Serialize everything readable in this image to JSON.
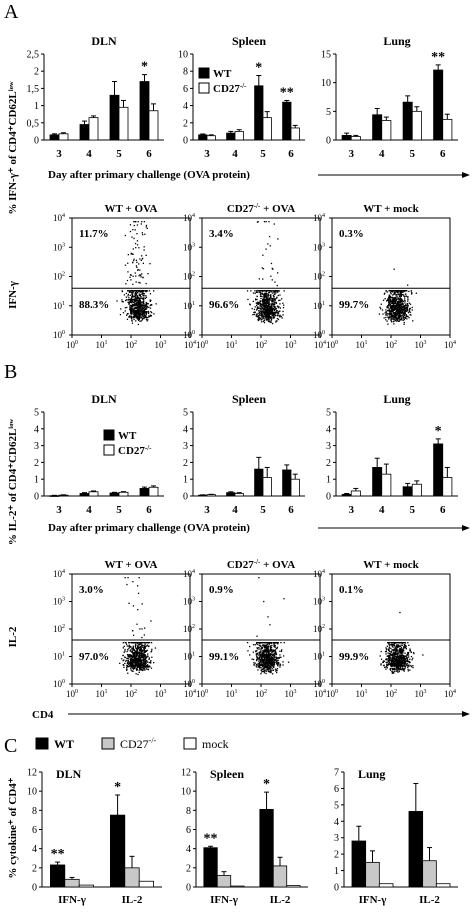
{
  "panel_letters": [
    "A",
    "B",
    "C"
  ],
  "legend_ab": {
    "wt": "WT",
    "ko": "CD27",
    "ko_sup": "-/-"
  },
  "legend_c": {
    "wt": "WT",
    "ko": "CD27",
    "ko_sup": "-/-",
    "mock": "mock"
  },
  "colors": {
    "wt": "#000000",
    "ko": "#ffffff",
    "ko_c": "#c8c8c8",
    "mock": "#ffffff"
  },
  "chart_data": [
    {
      "id": "A_DLN",
      "type": "bar",
      "title": "DLN",
      "categories": [
        "3",
        "4",
        "5",
        "6"
      ],
      "series": [
        {
          "name": "WT",
          "values": [
            0.15,
            0.45,
            1.3,
            1.7
          ],
          "errors": [
            0.03,
            0.1,
            0.4,
            0.2
          ]
        },
        {
          "name": "CD27-/-",
          "values": [
            0.18,
            0.65,
            0.95,
            0.85
          ],
          "errors": [
            0.03,
            0.05,
            0.2,
            0.2
          ]
        }
      ],
      "yticks": [
        "0",
        "0,5",
        "1",
        "1,5",
        "2",
        "2,5"
      ],
      "ylim": [
        0,
        2.5
      ],
      "annotations": [
        {
          "index": 3,
          "text": "*"
        }
      ]
    },
    {
      "id": "A_Spleen",
      "type": "bar",
      "title": "Spleen",
      "categories": [
        "3",
        "4",
        "5",
        "6"
      ],
      "series": [
        {
          "name": "WT",
          "values": [
            0.6,
            0.8,
            6.3,
            4.4
          ],
          "errors": [
            0.1,
            0.2,
            1.2,
            0.2
          ]
        },
        {
          "name": "CD27-/-",
          "values": [
            0.5,
            1.0,
            2.6,
            1.4
          ],
          "errors": [
            0.1,
            0.2,
            0.7,
            0.3
          ]
        }
      ],
      "yticks": [
        "0",
        "2",
        "4",
        "6",
        "8",
        "10"
      ],
      "ylim": [
        0,
        10
      ],
      "annotations": [
        {
          "index": 2,
          "text": "*"
        },
        {
          "index": 3,
          "text": "**"
        }
      ]
    },
    {
      "id": "A_Lung",
      "type": "bar",
      "title": "Lung",
      "categories": [
        "3",
        "4",
        "5",
        "6"
      ],
      "series": [
        {
          "name": "WT",
          "values": [
            0.8,
            4.4,
            6.6,
            12.2
          ],
          "errors": [
            0.4,
            1.1,
            1.1,
            0.9
          ]
        },
        {
          "name": "CD27-/-",
          "values": [
            0.6,
            3.4,
            5.0,
            3.6
          ],
          "errors": [
            0.2,
            0.6,
            0.8,
            0.9
          ]
        }
      ],
      "yticks": [
        "0",
        "5",
        "10",
        "15"
      ],
      "ylim": [
        0,
        15
      ],
      "annotations": [
        {
          "index": 3,
          "text": "**"
        }
      ]
    },
    {
      "id": "B_DLN",
      "type": "bar",
      "title": "DLN",
      "categories": [
        "3",
        "4",
        "5",
        "6"
      ],
      "series": [
        {
          "name": "WT",
          "values": [
            0.02,
            0.15,
            0.18,
            0.45
          ],
          "errors": [
            0.02,
            0.05,
            0.04,
            0.08
          ]
        },
        {
          "name": "CD27-/-",
          "values": [
            0.05,
            0.25,
            0.22,
            0.52
          ],
          "errors": [
            0.02,
            0.05,
            0.04,
            0.08
          ]
        }
      ],
      "yticks": [
        "0",
        "1",
        "2",
        "3",
        "4",
        "5"
      ],
      "ylim": [
        0,
        5
      ],
      "annotations": []
    },
    {
      "id": "B_Spleen",
      "type": "bar",
      "title": "Spleen",
      "categories": [
        "3",
        "4",
        "5",
        "6"
      ],
      "series": [
        {
          "name": "WT",
          "values": [
            0.05,
            0.2,
            1.6,
            1.55
          ],
          "errors": [
            0.02,
            0.05,
            0.7,
            0.3
          ]
        },
        {
          "name": "CD27-/-",
          "values": [
            0.08,
            0.15,
            1.1,
            1.0
          ],
          "errors": [
            0.02,
            0.05,
            0.6,
            0.3
          ]
        }
      ],
      "yticks": [
        "0",
        "1",
        "2",
        "3",
        "4",
        "5"
      ],
      "ylim": [
        0,
        5
      ],
      "annotations": []
    },
    {
      "id": "B_Lung",
      "type": "bar",
      "title": "Lung",
      "categories": [
        "3",
        "4",
        "5",
        "6"
      ],
      "series": [
        {
          "name": "WT",
          "values": [
            0.1,
            1.7,
            0.55,
            3.1
          ],
          "errors": [
            0.05,
            0.55,
            0.2,
            0.3
          ]
        },
        {
          "name": "CD27-/-",
          "values": [
            0.3,
            1.3,
            0.7,
            1.1
          ],
          "errors": [
            0.15,
            0.6,
            0.2,
            0.6
          ]
        }
      ],
      "yticks": [
        "0",
        "1",
        "2",
        "3",
        "4",
        "5"
      ],
      "ylim": [
        0,
        5
      ],
      "annotations": [
        {
          "index": 3,
          "text": "*"
        }
      ]
    },
    {
      "id": "C_DLN",
      "type": "bar",
      "title": "DLN",
      "categories": [
        "IFN-γ",
        "IL-2"
      ],
      "series": [
        {
          "name": "WT",
          "values": [
            2.3,
            7.5
          ],
          "errors": [
            0.3,
            2.1
          ]
        },
        {
          "name": "CD27-/-",
          "values": [
            0.8,
            2.0
          ],
          "errors": [
            0.2,
            1.2
          ]
        },
        {
          "name": "mock",
          "values": [
            0.2,
            0.6
          ],
          "errors": [
            0,
            0
          ]
        }
      ],
      "yticks": [
        "0",
        "2",
        "4",
        "6",
        "8",
        "10",
        "12"
      ],
      "ylim": [
        0,
        12
      ],
      "annotations": [
        {
          "index": 0,
          "text": "**"
        },
        {
          "index": 1,
          "text": "*"
        }
      ]
    },
    {
      "id": "C_Spleen",
      "type": "bar",
      "title": "Spleen",
      "categories": [
        "IFN-γ",
        "IL-2"
      ],
      "series": [
        {
          "name": "WT",
          "values": [
            4.1,
            8.1
          ],
          "errors": [
            0.15,
            1.8
          ]
        },
        {
          "name": "CD27-/-",
          "values": [
            1.2,
            2.2
          ],
          "errors": [
            0.4,
            0.9
          ]
        },
        {
          "name": "mock",
          "values": [
            0.1,
            0.15
          ],
          "errors": [
            0,
            0
          ]
        }
      ],
      "yticks": [
        "0",
        "2",
        "4",
        "6",
        "8",
        "10",
        "12"
      ],
      "ylim": [
        0,
        12
      ],
      "annotations": [
        {
          "index": 0,
          "text": "**"
        },
        {
          "index": 1,
          "text": "*"
        }
      ]
    },
    {
      "id": "C_Lung",
      "type": "bar",
      "title": "Lung",
      "categories": [
        "IFN-γ",
        "IL-2"
      ],
      "series": [
        {
          "name": "WT",
          "values": [
            2.8,
            4.6
          ],
          "errors": [
            0.9,
            1.7
          ]
        },
        {
          "name": "CD27-/-",
          "values": [
            1.5,
            1.6
          ],
          "errors": [
            0.7,
            0.8
          ]
        },
        {
          "name": "mock",
          "values": [
            0.2,
            0.2
          ],
          "errors": [
            0,
            0
          ]
        }
      ],
      "yticks": [
        "0",
        "1",
        "2",
        "3",
        "4",
        "5",
        "6",
        "7"
      ],
      "ylim": [
        0,
        7
      ],
      "annotations": []
    },
    {
      "id": "A_flow_WT_OVA",
      "type": "scatter",
      "title": "WT + OVA",
      "quadrant_labels": [
        "11.7%",
        "88.3%"
      ],
      "upper_fraction": 0.117
    },
    {
      "id": "A_flow_CD27_OVA",
      "type": "scatter",
      "title": "CD27",
      "title_sup": "-/-",
      "title_suffix": " + OVA",
      "quadrant_labels": [
        "3.4%",
        "96.6%"
      ],
      "upper_fraction": 0.034
    },
    {
      "id": "A_flow_WT_mock",
      "type": "scatter",
      "title": "WT + mock",
      "quadrant_labels": [
        "0.3%",
        "99.7%"
      ],
      "upper_fraction": 0.003
    },
    {
      "id": "B_flow_WT_OVA",
      "type": "scatter",
      "title": "WT + OVA",
      "quadrant_labels": [
        "3.0%",
        "97.0%"
      ],
      "upper_fraction": 0.03
    },
    {
      "id": "B_flow_CD27_OVA",
      "type": "scatter",
      "title": "CD27",
      "title_sup": "-/-",
      "title_suffix": " + OVA",
      "quadrant_labels": [
        "0.9%",
        "99.1%"
      ],
      "upper_fraction": 0.009
    },
    {
      "id": "B_flow_WT_mock",
      "type": "scatter",
      "title": "WT + mock",
      "quadrant_labels": [
        "0.1%",
        "99.9%"
      ],
      "upper_fraction": 0.001
    }
  ],
  "flow_axis": {
    "tick_base": "10",
    "tick_exps": [
      "0",
      "1",
      "2",
      "3",
      "4"
    ]
  },
  "labels": {
    "a_ylabel": "% IFN-γ⁺ of CD4⁺CD62Lˡᵒʷ",
    "a_xlabel": "Day after primary challenge (OVA protein)",
    "a_flow_ylabel": "IFN-γ",
    "b_ylabel": "% IL-2⁺ of CD4⁺CD62Lˡᵒʷ",
    "b_xlabel": "Day after primary challenge (OVA protein)",
    "b_flow_ylabel": "IL-2",
    "b_flow_xlabel": "CD4",
    "c_ylabel": "% cytokine⁺ of CD4⁺"
  }
}
